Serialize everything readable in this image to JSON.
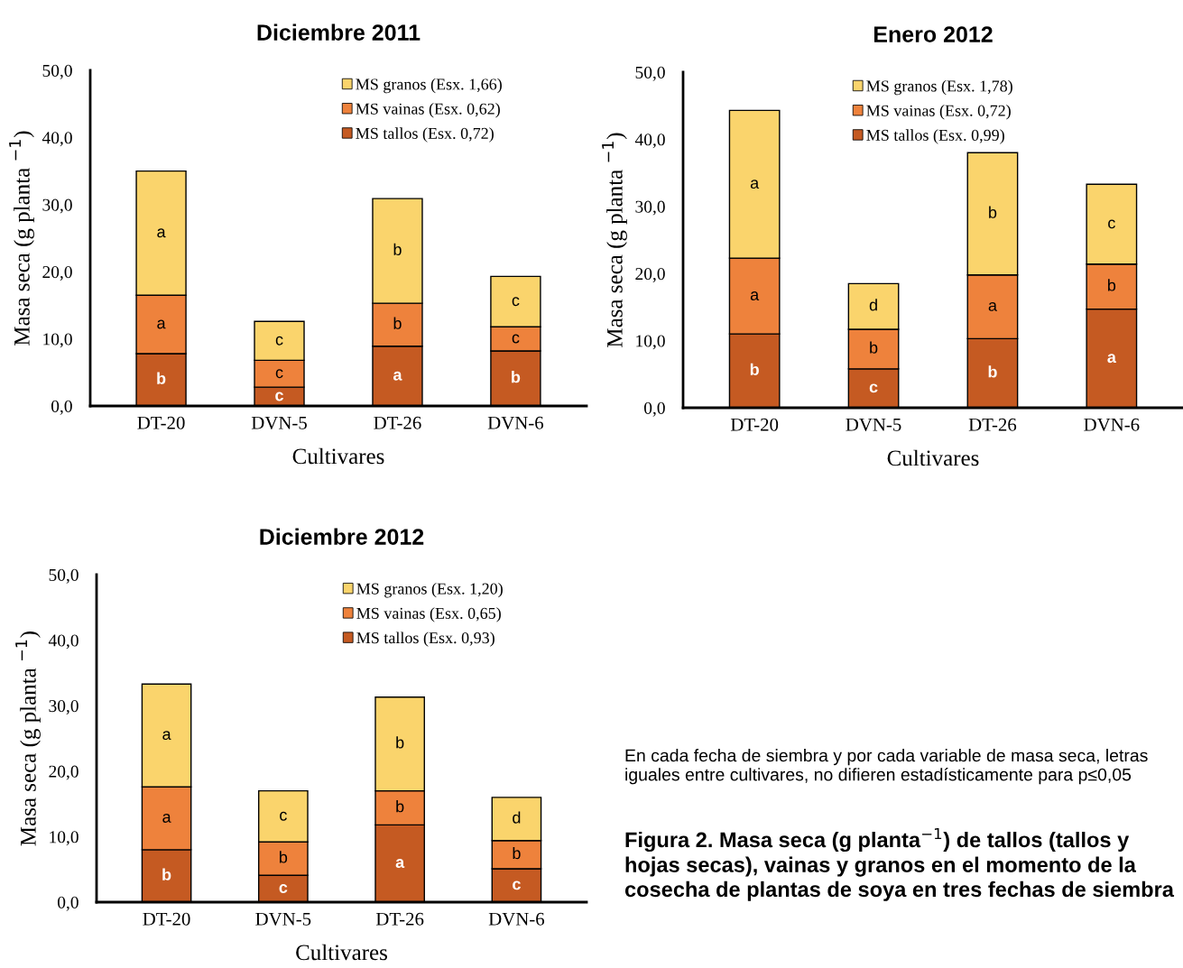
{
  "chart_data": [
    {
      "type": "bar",
      "title": "Diciembre 2011",
      "xlabel": "Cultivares",
      "ylabel": "Masa seca (g planta $^{−1}$)",
      "stacked": true,
      "legend": "top right",
      "grid": false,
      "categories": [
        "DT-20",
        "DVN-5",
        "DT-26",
        "DVN-6"
      ],
      "ylim": [
        0,
        50
      ],
      "yticks": [
        {
          "value": 0,
          "label": "0,0"
        },
        {
          "value": 10,
          "label": "10,0"
        },
        {
          "value": 20,
          "label": "20,0"
        },
        {
          "value": 30,
          "label": "30,0"
        },
        {
          "value": 40,
          "label": "40,0"
        },
        {
          "value": 50,
          "label": "50,0"
        }
      ],
      "series": [
        {
          "name": "MS tallos (Esx. 0,72)",
          "color": "#c55a22",
          "values": [
            7.8,
            2.8,
            8.9,
            8.2
          ],
          "value_labels": [
            "b",
            "c",
            "a",
            "b"
          ]
        },
        {
          "name": "MS vainas (Esx. 0,62)",
          "color": "#ee823c",
          "values": [
            8.7,
            4.0,
            6.4,
            3.6
          ],
          "value_labels": [
            "a",
            "c",
            "b",
            "c"
          ]
        },
        {
          "name": "MS granos (Esx. 1,66)",
          "color": "#fad46c",
          "values": [
            18.5,
            5.8,
            15.6,
            7.5
          ],
          "value_labels": [
            "a",
            "c",
            "b",
            "c"
          ]
        }
      ]
    },
    {
      "type": "bar",
      "title": "Enero 2012",
      "xlabel": "Cultivares",
      "ylabel": "Masa seca (g planta $^{−1}$)",
      "stacked": true,
      "legend": "top",
      "grid": false,
      "categories": [
        "DT-20",
        "DVN-5",
        "DT-26",
        "DVN-6"
      ],
      "ylim": [
        0,
        50
      ],
      "yticks": [
        {
          "value": 0,
          "label": "0,0"
        },
        {
          "value": 10,
          "label": "10,0"
        },
        {
          "value": 20,
          "label": "20,0"
        },
        {
          "value": 30,
          "label": "30,0"
        },
        {
          "value": 40,
          "label": "40,0"
        },
        {
          "value": 50,
          "label": "50,0"
        }
      ],
      "series": [
        {
          "name": "MS tallos (Esx. 0,99)",
          "color": "#c55a22",
          "values": [
            11.0,
            5.8,
            10.3,
            14.7
          ],
          "value_labels": [
            "b",
            "c",
            "b",
            "a"
          ]
        },
        {
          "name": "MS vainas (Esx. 0,72)",
          "color": "#ee823c",
          "values": [
            11.3,
            5.9,
            9.5,
            6.7
          ],
          "value_labels": [
            "a",
            "b",
            "a",
            "b"
          ]
        },
        {
          "name": "MS granos (Esx. 1,78)",
          "color": "#fad46c",
          "values": [
            22.0,
            6.8,
            18.2,
            11.9
          ],
          "value_labels": [
            "a",
            "d",
            "b",
            "c"
          ]
        }
      ]
    },
    {
      "type": "bar",
      "title": "Diciembre 2012",
      "xlabel": "Cultivares",
      "ylabel": "Masa seca (g planta $^{−1}$)",
      "stacked": true,
      "legend": "top right",
      "grid": false,
      "categories": [
        "DT-20",
        "DVN-5",
        "DT-26",
        "DVN-6"
      ],
      "ylim": [
        0,
        50
      ],
      "yticks": [
        {
          "value": 0,
          "label": "0,0"
        },
        {
          "value": 10,
          "label": "10,0"
        },
        {
          "value": 20,
          "label": "20,0"
        },
        {
          "value": 30,
          "label": "30,0"
        },
        {
          "value": 40,
          "label": "40,0"
        },
        {
          "value": 50,
          "label": "50,0"
        }
      ],
      "series": [
        {
          "name": "MS tallos (Esx. 0,93)",
          "color": "#c55a22",
          "values": [
            8.0,
            4.1,
            11.8,
            5.1
          ],
          "value_labels": [
            "b",
            "c",
            "a",
            "c"
          ]
        },
        {
          "name": "MS vainas (Esx. 0,65)",
          "color": "#ee823c",
          "values": [
            9.6,
            5.1,
            5.2,
            4.3
          ],
          "value_labels": [
            "a",
            "b",
            "b",
            "b"
          ]
        },
        {
          "name": "MS granos (Esx. 1,20)",
          "color": "#fad46c",
          "values": [
            15.7,
            7.8,
            14.3,
            6.6
          ],
          "value_labels": [
            "a",
            "c",
            "b",
            "d"
          ]
        }
      ],
      "annotations": [
        "En cada fecha de siembra y por cada variable de masa seca, letras iguales entre cultivares, no difieren estadísticamente para p≤0,05",
        "Figura 2. Masa seca (g planta$^{−1}$) de tallos (tallos y hojas secas), vainas y granos en el momento de la cosecha de plantas de soya en tres fechas de siembra"
      ]
    }
  ]
}
